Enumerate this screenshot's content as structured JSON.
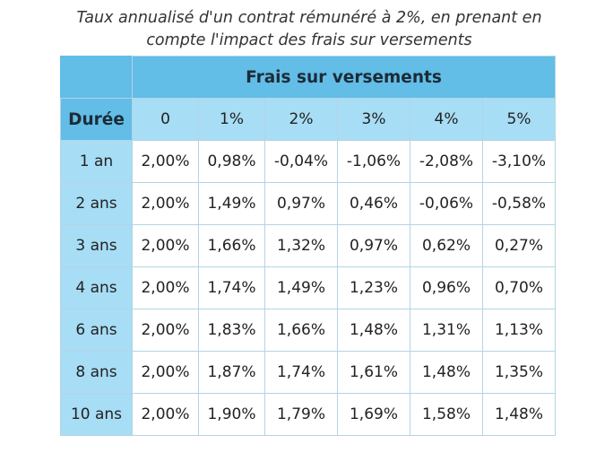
{
  "caption": {
    "line1": "Taux annualisé d'un contrat rémunéré à 2%, en prenant en",
    "line2": "compte l'impact des frais sur versements"
  },
  "table": {
    "group_header": "Frais sur versements",
    "duration_header": "Durée",
    "fee_columns": [
      "0",
      "1%",
      "2%",
      "3%",
      "4%",
      "5%"
    ],
    "rows": [
      {
        "duration": "1 an",
        "values": [
          "2,00%",
          "0,98%",
          "-0,04%",
          "-1,06%",
          "-2,08%",
          "-3,10%"
        ]
      },
      {
        "duration": "2 ans",
        "values": [
          "2,00%",
          "1,49%",
          "0,97%",
          "0,46%",
          "-0,06%",
          "-0,58%"
        ]
      },
      {
        "duration": "3 ans",
        "values": [
          "2,00%",
          "1,66%",
          "1,32%",
          "0,97%",
          "0,62%",
          "0,27%"
        ]
      },
      {
        "duration": "4 ans",
        "values": [
          "2,00%",
          "1,74%",
          "1,49%",
          "1,23%",
          "0,96%",
          "0,70%"
        ]
      },
      {
        "duration": "6 ans",
        "values": [
          "2,00%",
          "1,83%",
          "1,66%",
          "1,48%",
          "1,31%",
          "1,13%"
        ]
      },
      {
        "duration": "8 ans",
        "values": [
          "2,00%",
          "1,87%",
          "1,74%",
          "1,61%",
          "1,48%",
          "1,35%"
        ]
      },
      {
        "duration": "10 ans",
        "values": [
          "2,00%",
          "1,90%",
          "1,79%",
          "1,69%",
          "1,58%",
          "1,48%"
        ]
      }
    ]
  },
  "colors": {
    "header_dark": "#62bde7",
    "header_light": "#a7ddf5",
    "border": "#b3d4e6"
  }
}
